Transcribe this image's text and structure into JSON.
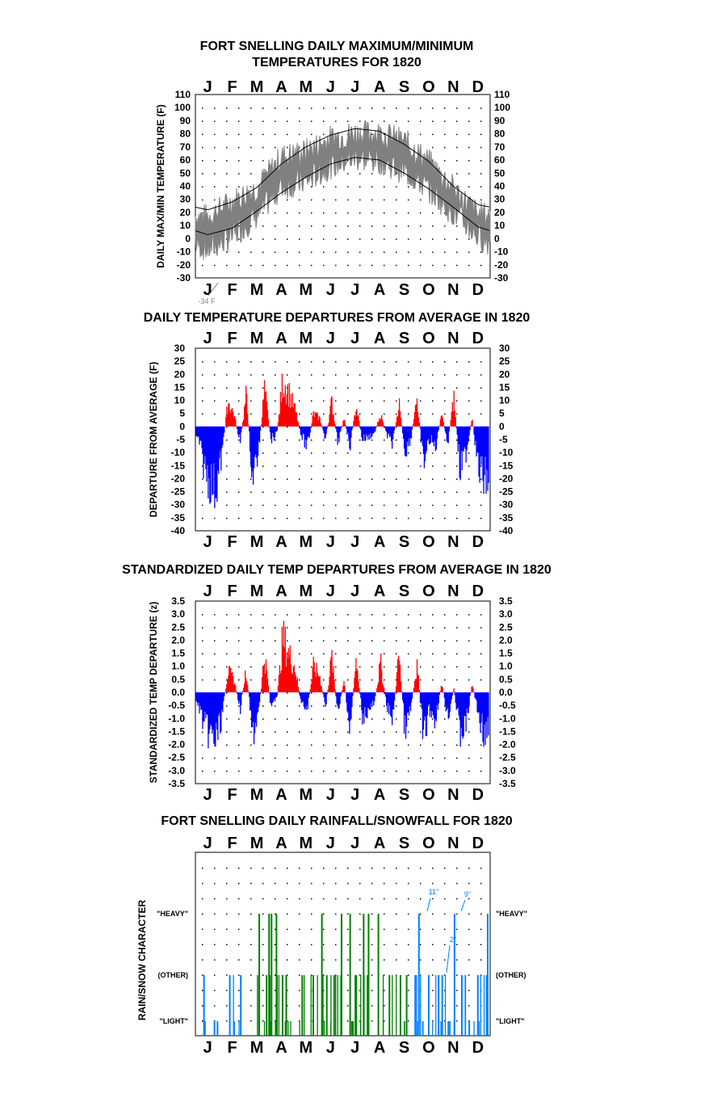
{
  "colors": {
    "max_min_series": "#808080",
    "normal_lines": "#000000",
    "above_average": "#ff0000",
    "below_average": "#0000ff",
    "rain": "#008000",
    "snow": "#0080ff",
    "annotation": "#0080ff"
  },
  "months": [
    "J",
    "F",
    "M",
    "A",
    "M",
    "J",
    "J",
    "A",
    "S",
    "O",
    "N",
    "D"
  ],
  "chart_data": [
    {
      "id": "temps",
      "type": "line",
      "title_lines": [
        "FORT SNELLING DAILY MAXIMUM/MINIMUM",
        "TEMPERATURES FOR 1820"
      ],
      "ylabel": "DAILY MAX/MIN TEMPERATURE (F)",
      "ylim": [
        -30,
        110
      ],
      "yticks": [
        110,
        100,
        90,
        80,
        70,
        60,
        50,
        40,
        30,
        20,
        10,
        0,
        -10,
        -20,
        -30
      ],
      "grid": true,
      "annotation": "-34 F",
      "normal_high_monthly": [
        22,
        28,
        39,
        57,
        70,
        79,
        84,
        82,
        72,
        59,
        40,
        26
      ],
      "normal_low_monthly": [
        3,
        8,
        21,
        35,
        47,
        57,
        62,
        60,
        50,
        38,
        24,
        9
      ],
      "daily_max_monthly_mean": [
        16,
        28,
        38,
        62,
        66,
        76,
        80,
        80,
        74,
        58,
        38,
        18
      ],
      "daily_min_monthly_mean": [
        -8,
        2,
        18,
        40,
        44,
        56,
        62,
        60,
        52,
        38,
        20,
        2
      ]
    },
    {
      "id": "departures",
      "type": "bar",
      "title": "DAILY TEMPERATURE DEPARTURES FROM AVERAGE IN 1820",
      "ylabel": "DEPARTURE FROM AVERAGE (F)",
      "ylim": [
        -40,
        30
      ],
      "yticks": [
        30,
        25,
        20,
        15,
        10,
        5,
        0,
        -5,
        -10,
        -15,
        -20,
        -25,
        -30,
        -35,
        -40
      ],
      "grid": true,
      "weekly_x_month": [
        0.1,
        0.3,
        0.55,
        0.8,
        1.05,
        1.3,
        1.55,
        1.8,
        2.05,
        2.3,
        2.55,
        2.8,
        3.05,
        3.3,
        3.55,
        3.8,
        4.05,
        4.3,
        4.55,
        4.8,
        5.05,
        5.3,
        5.55,
        5.8,
        6.05,
        6.3,
        6.55,
        6.8,
        7.05,
        7.3,
        7.55,
        7.8,
        8.05,
        8.3,
        8.55,
        8.8,
        9.05,
        9.3,
        9.55,
        9.8,
        10.05,
        10.3,
        10.55,
        10.8,
        11.05,
        11.3,
        11.55,
        11.8
      ],
      "weekly_values": [
        -6,
        -18,
        -26,
        -30,
        -14,
        12,
        6,
        -8,
        15,
        -24,
        -12,
        18,
        -6,
        -4,
        22,
        16,
        8,
        -4,
        -10,
        6,
        4,
        -6,
        12,
        -8,
        4,
        -9,
        10,
        -6,
        -5,
        -3,
        6,
        -4,
        -8,
        12,
        -12,
        -5,
        14,
        -18,
        -6,
        -10,
        6,
        -8,
        14,
        -22,
        -12,
        4,
        -20,
        -25
      ]
    },
    {
      "id": "standardized",
      "type": "bar",
      "title": "STANDARDIZED DAILY TEMP DEPARTURES FROM AVERAGE IN 1820",
      "ylabel": "STANDARDIZED TEMP DEPARTURE (z)",
      "ylim": [
        -3.5,
        3.5
      ],
      "yticks": [
        "3.5",
        "3.0",
        "2.5",
        "2.0",
        "1.5",
        "1.0",
        "0.5",
        "0.0",
        "-0.5",
        "-1.0",
        "-1.5",
        "-2.0",
        "-2.5",
        "-3.0",
        "-3.5"
      ],
      "grid": true,
      "weekly_x_month": [
        0.1,
        0.3,
        0.55,
        0.8,
        1.05,
        1.3,
        1.55,
        1.8,
        2.05,
        2.3,
        2.55,
        2.8,
        3.05,
        3.3,
        3.55,
        3.8,
        4.05,
        4.3,
        4.55,
        4.8,
        5.05,
        5.3,
        5.55,
        5.8,
        6.05,
        6.3,
        6.55,
        6.8,
        7.05,
        7.3,
        7.55,
        7.8,
        8.05,
        8.3,
        8.55,
        8.8,
        9.05,
        9.3,
        9.55,
        9.8,
        10.05,
        10.3,
        10.55,
        10.8,
        11.05,
        11.3,
        11.55,
        11.8
      ],
      "weekly_values": [
        -0.6,
        -1.5,
        -2.0,
        -2.3,
        -1.2,
        1.0,
        0.6,
        -0.8,
        1.2,
        -2.1,
        -1.0,
        1.8,
        -0.6,
        -0.4,
        2.6,
        1.8,
        1.2,
        -0.6,
        -0.8,
        1.2,
        0.8,
        -0.7,
        1.7,
        -1.1,
        0.6,
        -1.8,
        1.7,
        -1.1,
        -0.9,
        -0.5,
        1.4,
        -0.7,
        -1.2,
        1.8,
        -1.9,
        -0.7,
        1.5,
        -2.3,
        -0.8,
        -1.3,
        0.5,
        -1.2,
        0.2,
        -2.0,
        -1.5,
        0.4,
        -1.0,
        -2.0
      ]
    },
    {
      "id": "precip",
      "type": "bar",
      "title": "FORT SNELLING DAILY RAINFALL/SNOWFALL FOR 1820",
      "ylabel": "RAIN/SNOW CHARACTER",
      "ytick_labels": [
        "\"HEAVY\"",
        "(OTHER)",
        "\"LIGHT\""
      ],
      "grid": true,
      "annotations": [
        "11\"",
        "9\"",
        "2\""
      ],
      "events": [
        {
          "x": 0.35,
          "type": "snow",
          "level": "other"
        },
        {
          "x": 0.9,
          "type": "snow",
          "level": "light"
        },
        {
          "x": 1.4,
          "type": "snow",
          "level": "other"
        },
        {
          "x": 1.85,
          "type": "snow",
          "level": "other"
        },
        {
          "x": 2.6,
          "type": "rain",
          "level": "heavy"
        },
        {
          "x": 2.9,
          "type": "rain",
          "level": "other"
        },
        {
          "x": 3.0,
          "type": "rain",
          "level": "heavy"
        },
        {
          "x": 3.1,
          "type": "rain",
          "level": "heavy"
        },
        {
          "x": 3.3,
          "type": "rain",
          "level": "heavy"
        },
        {
          "x": 3.55,
          "type": "rain",
          "level": "other"
        },
        {
          "x": 3.7,
          "type": "rain",
          "level": "other"
        },
        {
          "x": 4.35,
          "type": "rain",
          "level": "other"
        },
        {
          "x": 4.8,
          "type": "rain",
          "level": "other"
        },
        {
          "x": 5.15,
          "type": "rain",
          "level": "heavy"
        },
        {
          "x": 5.35,
          "type": "rain",
          "level": "other"
        },
        {
          "x": 5.7,
          "type": "rain",
          "level": "other"
        },
        {
          "x": 5.95,
          "type": "rain",
          "level": "heavy"
        },
        {
          "x": 6.3,
          "type": "rain",
          "level": "heavy"
        },
        {
          "x": 6.55,
          "type": "rain",
          "level": "other"
        },
        {
          "x": 6.85,
          "type": "rain",
          "level": "heavy"
        },
        {
          "x": 7.05,
          "type": "rain",
          "level": "heavy"
        },
        {
          "x": 7.45,
          "type": "rain",
          "level": "heavy"
        },
        {
          "x": 7.9,
          "type": "rain",
          "level": "other"
        },
        {
          "x": 8.35,
          "type": "rain",
          "level": "other"
        },
        {
          "x": 8.6,
          "type": "rain",
          "level": "other"
        },
        {
          "x": 8.95,
          "type": "snow",
          "level": "other"
        },
        {
          "x": 9.1,
          "type": "snow",
          "level": "heavy"
        },
        {
          "x": 9.5,
          "type": "snow",
          "level": "other"
        },
        {
          "x": 9.9,
          "type": "snow",
          "level": "other"
        },
        {
          "x": 10.05,
          "type": "snow",
          "level": "other"
        },
        {
          "x": 10.3,
          "type": "snow",
          "level": "light"
        },
        {
          "x": 10.55,
          "type": "snow",
          "level": "heavy"
        },
        {
          "x": 10.85,
          "type": "snow",
          "level": "other"
        },
        {
          "x": 11.15,
          "type": "snow",
          "level": "light"
        },
        {
          "x": 11.5,
          "type": "snow",
          "level": "other"
        },
        {
          "x": 11.9,
          "type": "snow",
          "level": "heavy"
        }
      ]
    }
  ]
}
